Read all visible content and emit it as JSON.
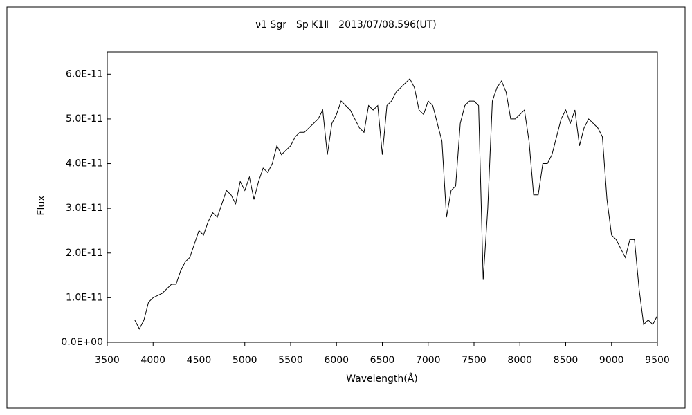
{
  "chart_data": {
    "type": "line",
    "title": "ν1 Sgr　Sp K1Ⅱ　2013/07/08.596(UT)",
    "x_label": "Wavelength(Å)",
    "y_label": "Flux",
    "color": "#000000",
    "x": [
      3800,
      3850,
      3900,
      3950,
      4000,
      4050,
      4100,
      4150,
      4200,
      4250,
      4300,
      4350,
      4400,
      4450,
      4500,
      4550,
      4600,
      4650,
      4700,
      4750,
      4800,
      4850,
      4900,
      4950,
      5000,
      5050,
      5100,
      5150,
      5200,
      5250,
      5300,
      5350,
      5400,
      5450,
      5500,
      5550,
      5600,
      5650,
      5700,
      5750,
      5800,
      5850,
      5900,
      5950,
      6000,
      6050,
      6100,
      6150,
      6200,
      6250,
      6300,
      6350,
      6400,
      6450,
      6500,
      6550,
      6600,
      6650,
      6700,
      6750,
      6800,
      6850,
      6900,
      6950,
      7000,
      7050,
      7100,
      7150,
      7200,
      7250,
      7300,
      7350,
      7400,
      7450,
      7500,
      7550,
      7600,
      7650,
      7700,
      7750,
      7800,
      7850,
      7900,
      7950,
      8000,
      8050,
      8100,
      8150,
      8200,
      8250,
      8300,
      8350,
      8400,
      8450,
      8500,
      8550,
      8600,
      8650,
      8700,
      8750,
      8800,
      8850,
      8900,
      8950,
      9000,
      9050,
      9100,
      9150,
      9200,
      9250,
      9300,
      9350,
      9400,
      9450,
      9500
    ],
    "values": [
      5e-12,
      3e-12,
      5e-12,
      9e-12,
      1e-11,
      1.05e-11,
      1.1e-11,
      1.2e-11,
      1.3e-11,
      1.3e-11,
      1.6e-11,
      1.8e-11,
      1.9e-11,
      2.2e-11,
      2.5e-11,
      2.4e-11,
      2.7e-11,
      2.9e-11,
      2.8e-11,
      3.1e-11,
      3.4e-11,
      3.3e-11,
      3.1e-11,
      3.6e-11,
      3.4e-11,
      3.7e-11,
      3.2e-11,
      3.6e-11,
      3.9e-11,
      3.8e-11,
      4e-11,
      4.4e-11,
      4.2e-11,
      4.3e-11,
      4.4e-11,
      4.6e-11,
      4.7e-11,
      4.7e-11,
      4.8e-11,
      4.9e-11,
      5e-11,
      5.2e-11,
      4.2e-11,
      4.9e-11,
      5.1e-11,
      5.4e-11,
      5.3e-11,
      5.2e-11,
      5e-11,
      4.8e-11,
      4.7e-11,
      5.3e-11,
      5.2e-11,
      5.3e-11,
      4.2e-11,
      5.3e-11,
      5.4e-11,
      5.6e-11,
      5.7e-11,
      5.8e-11,
      5.9e-11,
      5.7e-11,
      5.2e-11,
      5.1e-11,
      5.4e-11,
      5.3e-11,
      4.9e-11,
      4.5e-11,
      2.8e-11,
      3.4e-11,
      3.5e-11,
      4.9e-11,
      5.3e-11,
      5.4e-11,
      5.4e-11,
      5.3e-11,
      1.4e-11,
      3e-11,
      5.4e-11,
      5.7e-11,
      5.85e-11,
      5.6e-11,
      5e-11,
      5e-11,
      5.1e-11,
      5.2e-11,
      4.5e-11,
      3.3e-11,
      3.3e-11,
      4e-11,
      4e-11,
      4.2e-11,
      4.6e-11,
      5e-11,
      5.2e-11,
      4.9e-11,
      5.2e-11,
      4.4e-11,
      4.8e-11,
      5e-11,
      4.9e-11,
      4.8e-11,
      4.6e-11,
      3.2e-11,
      2.4e-11,
      2.3e-11,
      2.1e-11,
      1.9e-11,
      2.3e-11,
      2.3e-11,
      1.2e-11,
      4e-12,
      5e-12,
      4e-12,
      6e-12
    ],
    "xlim": [
      3500,
      9500
    ],
    "xticks": [
      3500,
      4000,
      4500,
      5000,
      5500,
      6000,
      6500,
      7000,
      7500,
      8000,
      8500,
      9000,
      9500
    ],
    "ylim": [
      0,
      6.5e-11
    ],
    "yticks": [
      {
        "value": 0,
        "label": "0.0E+00"
      },
      {
        "value": 1e-11,
        "label": "1.0E-11"
      },
      {
        "value": 2e-11,
        "label": "2.0E-11"
      },
      {
        "value": 3e-11,
        "label": "3.0E-11"
      },
      {
        "value": 4e-11,
        "label": "4.0E-11"
      },
      {
        "value": 5e-11,
        "label": "5.0E-11"
      },
      {
        "value": 6e-11,
        "label": "6.0E-11"
      }
    ]
  }
}
